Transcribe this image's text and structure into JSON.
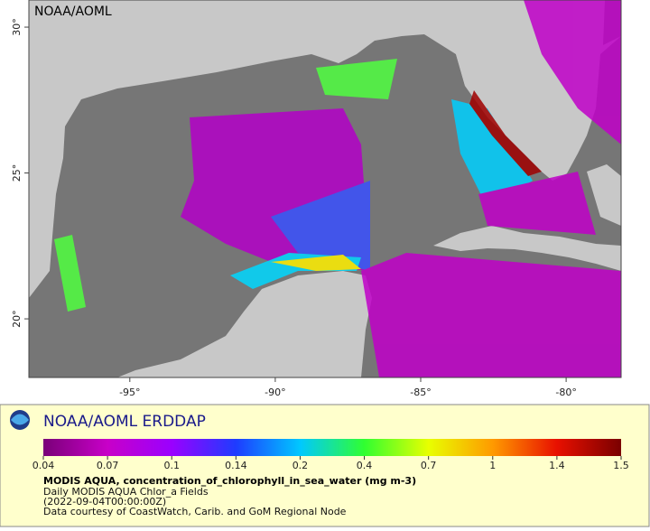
{
  "map": {
    "watermark": "NOAA/AOML",
    "xlim": [
      -98.47,
      -78.11
    ],
    "ylim": [
      17.99,
      30.93
    ],
    "xticks": [
      {
        "value": -95,
        "label": "-95°"
      },
      {
        "value": -90,
        "label": "-90°"
      },
      {
        "value": -85,
        "label": "-85°"
      },
      {
        "value": -80,
        "label": "-80°"
      }
    ],
    "yticks": [
      {
        "value": 20,
        "label": "20°"
      },
      {
        "value": 25,
        "label": "25°"
      },
      {
        "value": 30,
        "label": "30°"
      }
    ]
  },
  "legend": {
    "title": "NOAA/AOML ERDDAP",
    "colorbar": {
      "ticks": [
        0.04,
        0.07,
        0.1,
        0.14,
        0.2,
        0.4,
        0.7,
        1,
        1.4,
        1.5
      ],
      "colors": [
        "#7a0078",
        "#c800c8",
        "#9a00ff",
        "#1e3cff",
        "#00c8ff",
        "#30ff30",
        "#e8ff00",
        "#ff9a00",
        "#e81000",
        "#7a0000"
      ]
    },
    "variable": "MODIS AQUA, concentration_of_chlorophyll_in_sea_water (mg m-3)",
    "lines": [
      "Daily MODIS AQUA Chlor_a Fields",
      "(2022-09-04T00:00:00Z)",
      "Data courtesy of CoastWatch, Carib. and GoM Regional Node"
    ]
  }
}
